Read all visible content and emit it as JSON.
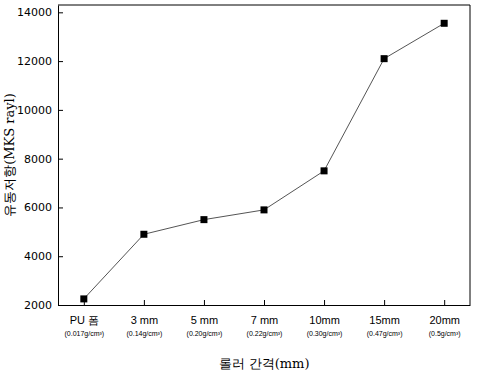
{
  "chart_data": {
    "type": "line",
    "x_label": "롤러 간격(mm)",
    "y_label": "유동저항(MKS rayl)",
    "categories": [
      "PU 폼\n(0.017g/cm³)",
      "3 mm\n(0.14g/cm³)",
      "5 mm\n(0.20g/cm³)",
      "7 mm\n(0.22g/cm³)",
      "10mm\n(0.30g/cm³)",
      "15mm\n(0.47g/cm³)",
      "20mm\n(0.5g/cm³)"
    ],
    "values": [
      2250,
      4900,
      5500,
      5900,
      7500,
      12100,
      13550
    ],
    "color": "#000000",
    "marker": "square",
    "ylim": [
      2000,
      14300
    ],
    "yticks": [
      2000,
      4000,
      6000,
      8000,
      10000,
      12000,
      14000
    ],
    "grid": false
  }
}
